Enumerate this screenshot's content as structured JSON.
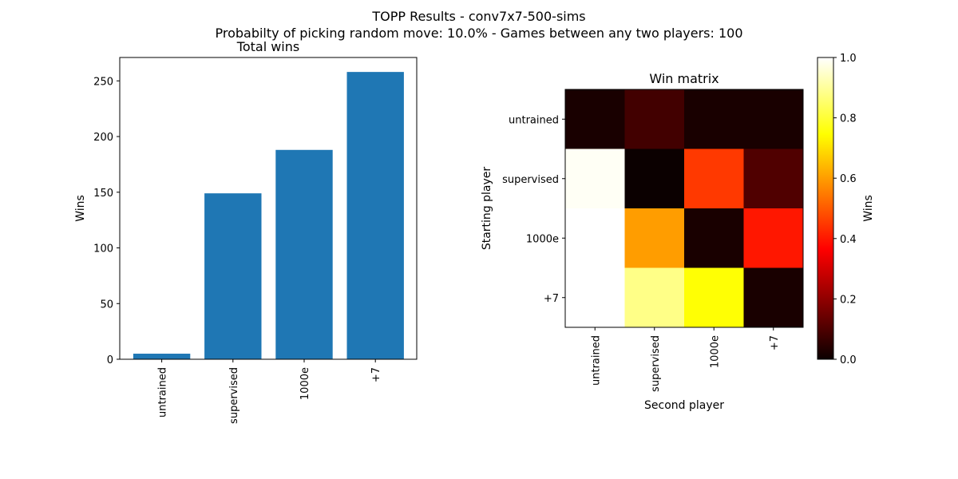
{
  "figure": {
    "title": "TOPP Results - conv7x7-500-sims",
    "subtitle": "Probabilty of picking random move: 10.0% - Games between any two players: 100"
  },
  "chart_data": [
    {
      "type": "bar",
      "title": "Total wins",
      "xlabel": "",
      "ylabel": "Wins",
      "categories": [
        "untrained",
        "supervised",
        "1000e",
        "+7"
      ],
      "values": [
        5,
        149,
        188,
        258
      ],
      "ylim": [
        0,
        271
      ],
      "yticks": [
        0,
        50,
        100,
        150,
        200,
        250
      ],
      "bar_color": "#1f77b4",
      "grid": false
    },
    {
      "type": "heatmap",
      "title": "Win matrix",
      "xlabel": "Second player",
      "ylabel": "Starting player",
      "x_categories": [
        "untrained",
        "supervised",
        "1000e",
        "+7"
      ],
      "y_categories": [
        "untrained",
        "supervised",
        "1000e",
        "+7"
      ],
      "values": [
        [
          0.02,
          0.08,
          0.02,
          0.02
        ],
        [
          0.99,
          0.0,
          0.45,
          0.1
        ],
        [
          1.0,
          0.6,
          0.02,
          0.4
        ],
        [
          1.0,
          0.88,
          0.75,
          0.02
        ]
      ],
      "colormap": "hot",
      "colorbar": {
        "label": "Wins",
        "range": [
          0,
          1
        ],
        "ticks": [
          "0.0",
          "0.2",
          "0.4",
          "0.6",
          "0.8",
          "1.0"
        ]
      }
    }
  ]
}
